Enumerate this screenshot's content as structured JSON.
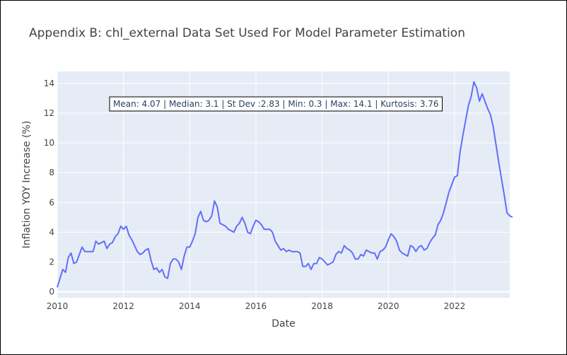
{
  "chart_data": {
    "type": "line",
    "title": "Appendix B: chl_external Data Set Used For Model Parameter Estimation",
    "xlabel": "Date",
    "ylabel": "Inflation YOY Increase (%)",
    "x_range": [
      "2010-01",
      "2023-09"
    ],
    "ylim": [
      -0.4,
      14.8
    ],
    "x_ticks": [
      "2010",
      "2012",
      "2014",
      "2016",
      "2018",
      "2020",
      "2022"
    ],
    "y_ticks": [
      0,
      2,
      4,
      6,
      8,
      10,
      12,
      14
    ],
    "grid": true,
    "annotation": "Mean: 4.07 | Median: 3.1 | St Dev :2.83 | Min: 0.3 | Max: 14.1 | Kurtosis: 3.76",
    "line_color": "#636efa",
    "plot_bg": "#e5ecf6",
    "series": [
      {
        "points": [
          [
            "2010-01",
            0.3
          ],
          [
            "2010-02",
            0.9
          ],
          [
            "2010-03",
            1.5
          ],
          [
            "2010-04",
            1.3
          ],
          [
            "2010-05",
            2.3
          ],
          [
            "2010-06",
            2.6
          ],
          [
            "2010-07",
            1.9
          ],
          [
            "2010-08",
            2.0
          ],
          [
            "2010-09",
            2.5
          ],
          [
            "2010-10",
            3.0
          ],
          [
            "2010-11",
            2.7
          ],
          [
            "2010-12",
            2.7
          ],
          [
            "2011-01",
            2.7
          ],
          [
            "2011-02",
            2.7
          ],
          [
            "2011-03",
            3.4
          ],
          [
            "2011-04",
            3.2
          ],
          [
            "2011-05",
            3.3
          ],
          [
            "2011-06",
            3.4
          ],
          [
            "2011-07",
            2.9
          ],
          [
            "2011-08",
            3.2
          ],
          [
            "2011-09",
            3.3
          ],
          [
            "2011-10",
            3.7
          ],
          [
            "2011-11",
            3.9
          ],
          [
            "2011-12",
            4.4
          ],
          [
            "2012-01",
            4.2
          ],
          [
            "2012-02",
            4.4
          ],
          [
            "2012-03",
            3.8
          ],
          [
            "2012-04",
            3.5
          ],
          [
            "2012-05",
            3.1
          ],
          [
            "2012-06",
            2.7
          ],
          [
            "2012-07",
            2.5
          ],
          [
            "2012-08",
            2.6
          ],
          [
            "2012-09",
            2.8
          ],
          [
            "2012-10",
            2.9
          ],
          [
            "2012-11",
            2.1
          ],
          [
            "2012-12",
            1.5
          ],
          [
            "2013-01",
            1.6
          ],
          [
            "2013-02",
            1.3
          ],
          [
            "2013-03",
            1.5
          ],
          [
            "2013-04",
            1.0
          ],
          [
            "2013-05",
            0.9
          ],
          [
            "2013-06",
            1.9
          ],
          [
            "2013-07",
            2.2
          ],
          [
            "2013-08",
            2.2
          ],
          [
            "2013-09",
            2.0
          ],
          [
            "2013-10",
            1.5
          ],
          [
            "2013-11",
            2.4
          ],
          [
            "2013-12",
            3.0
          ],
          [
            "2014-01",
            3.0
          ],
          [
            "2014-02",
            3.4
          ],
          [
            "2014-03",
            3.9
          ],
          [
            "2014-04",
            5.0
          ],
          [
            "2014-05",
            5.4
          ],
          [
            "2014-06",
            4.8
          ],
          [
            "2014-07",
            4.7
          ],
          [
            "2014-08",
            4.8
          ],
          [
            "2014-09",
            5.1
          ],
          [
            "2014-10",
            6.1
          ],
          [
            "2014-11",
            5.7
          ],
          [
            "2014-12",
            4.6
          ],
          [
            "2015-01",
            4.5
          ],
          [
            "2015-02",
            4.4
          ],
          [
            "2015-03",
            4.2
          ],
          [
            "2015-04",
            4.1
          ],
          [
            "2015-05",
            4.0
          ],
          [
            "2015-06",
            4.4
          ],
          [
            "2015-07",
            4.6
          ],
          [
            "2015-08",
            5.0
          ],
          [
            "2015-09",
            4.6
          ],
          [
            "2015-10",
            4.0
          ],
          [
            "2015-11",
            3.9
          ],
          [
            "2015-12",
            4.4
          ],
          [
            "2016-01",
            4.8
          ],
          [
            "2016-02",
            4.7
          ],
          [
            "2016-03",
            4.5
          ],
          [
            "2016-04",
            4.2
          ],
          [
            "2016-05",
            4.2
          ],
          [
            "2016-06",
            4.2
          ],
          [
            "2016-07",
            4.0
          ],
          [
            "2016-08",
            3.4
          ],
          [
            "2016-09",
            3.1
          ],
          [
            "2016-10",
            2.8
          ],
          [
            "2016-11",
            2.9
          ],
          [
            "2016-12",
            2.7
          ],
          [
            "2017-01",
            2.8
          ],
          [
            "2017-02",
            2.7
          ],
          [
            "2017-03",
            2.7
          ],
          [
            "2017-04",
            2.7
          ],
          [
            "2017-05",
            2.6
          ],
          [
            "2017-06",
            1.7
          ],
          [
            "2017-07",
            1.7
          ],
          [
            "2017-08",
            1.9
          ],
          [
            "2017-09",
            1.5
          ],
          [
            "2017-10",
            1.9
          ],
          [
            "2017-11",
            1.9
          ],
          [
            "2017-12",
            2.3
          ],
          [
            "2018-01",
            2.2
          ],
          [
            "2018-02",
            2.0
          ],
          [
            "2018-03",
            1.8
          ],
          [
            "2018-04",
            1.9
          ],
          [
            "2018-05",
            2.0
          ],
          [
            "2018-06",
            2.5
          ],
          [
            "2018-07",
            2.7
          ],
          [
            "2018-08",
            2.6
          ],
          [
            "2018-09",
            3.1
          ],
          [
            "2018-10",
            2.9
          ],
          [
            "2018-11",
            2.8
          ],
          [
            "2018-12",
            2.6
          ],
          [
            "2019-01",
            2.2
          ],
          [
            "2019-02",
            2.2
          ],
          [
            "2019-03",
            2.5
          ],
          [
            "2019-04",
            2.4
          ],
          [
            "2019-05",
            2.8
          ],
          [
            "2019-06",
            2.7
          ],
          [
            "2019-07",
            2.6
          ],
          [
            "2019-08",
            2.6
          ],
          [
            "2019-09",
            2.2
          ],
          [
            "2019-10",
            2.7
          ],
          [
            "2019-11",
            2.8
          ],
          [
            "2019-12",
            3.0
          ],
          [
            "2020-01",
            3.5
          ],
          [
            "2020-02",
            3.9
          ],
          [
            "2020-03",
            3.7
          ],
          [
            "2020-04",
            3.4
          ],
          [
            "2020-05",
            2.8
          ],
          [
            "2020-06",
            2.6
          ],
          [
            "2020-07",
            2.5
          ],
          [
            "2020-08",
            2.4
          ],
          [
            "2020-09",
            3.1
          ],
          [
            "2020-10",
            3.0
          ],
          [
            "2020-11",
            2.7
          ],
          [
            "2020-12",
            3.0
          ],
          [
            "2021-01",
            3.1
          ],
          [
            "2021-02",
            2.8
          ],
          [
            "2021-03",
            2.9
          ],
          [
            "2021-04",
            3.3
          ],
          [
            "2021-05",
            3.6
          ],
          [
            "2021-06",
            3.8
          ],
          [
            "2021-07",
            4.5
          ],
          [
            "2021-08",
            4.8
          ],
          [
            "2021-09",
            5.3
          ],
          [
            "2021-10",
            6.0
          ],
          [
            "2021-11",
            6.7
          ],
          [
            "2021-12",
            7.2
          ],
          [
            "2022-01",
            7.7
          ],
          [
            "2022-02",
            7.8
          ],
          [
            "2022-03",
            9.4
          ],
          [
            "2022-04",
            10.5
          ],
          [
            "2022-05",
            11.5
          ],
          [
            "2022-06",
            12.5
          ],
          [
            "2022-07",
            13.1
          ],
          [
            "2022-08",
            14.1
          ],
          [
            "2022-09",
            13.7
          ],
          [
            "2022-10",
            12.8
          ],
          [
            "2022-11",
            13.3
          ],
          [
            "2022-12",
            12.8
          ],
          [
            "2023-01",
            12.3
          ],
          [
            "2023-02",
            11.9
          ],
          [
            "2023-03",
            11.1
          ],
          [
            "2023-04",
            9.9
          ],
          [
            "2023-05",
            8.7
          ],
          [
            "2023-06",
            7.6
          ],
          [
            "2023-07",
            6.5
          ],
          [
            "2023-08",
            5.3
          ],
          [
            "2023-09",
            5.1
          ],
          [
            "2023-10",
            5.0
          ]
        ]
      }
    ]
  }
}
